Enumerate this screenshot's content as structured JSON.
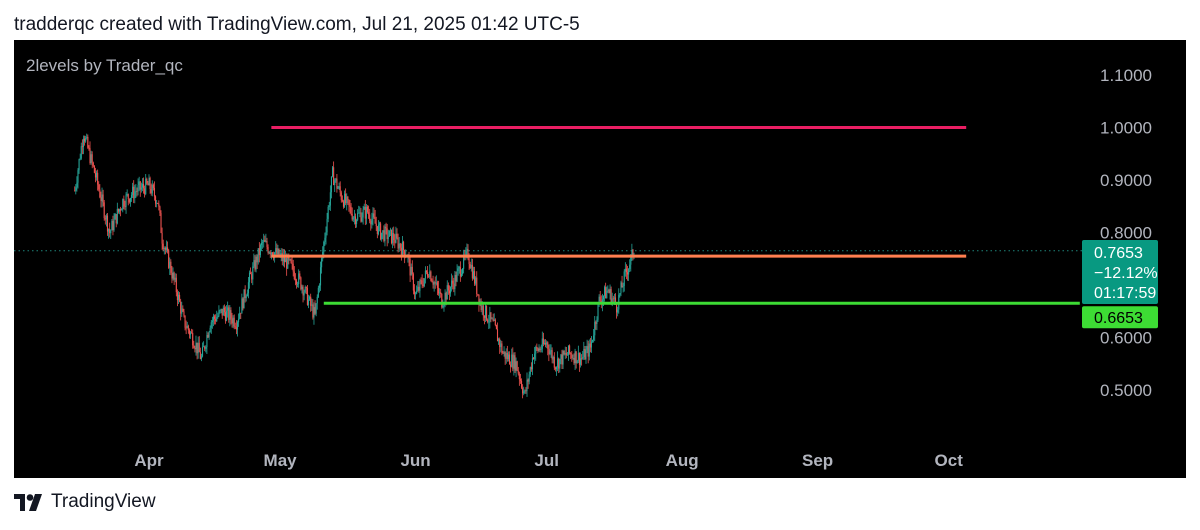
{
  "header": {
    "text": "tradderqc created with TradingView.com, Jul 21, 2025 01:42 UTC-5"
  },
  "study": {
    "label": "2levels by Trader_qc"
  },
  "footer": {
    "brand": "TradingView",
    "logo_icon": "tradingview-logo-icon"
  },
  "colors": {
    "up": "#26a69a",
    "down": "#ef5350",
    "resistance": "#e91e63",
    "pivot": "#ff7f50",
    "support": "#3ddc34",
    "last_price_bg": "#089981",
    "support_badge_bg": "#3ddc34"
  },
  "chart_data": {
    "type": "candlestick",
    "yscale": "linear",
    "ylim": [
      0.42,
      1.15
    ],
    "y_ticks": [
      "1.1000",
      "1.0000",
      "0.9000",
      "0.8000",
      "0.6000",
      "0.5000"
    ],
    "x_ticks": [
      "Apr",
      "May",
      "Jun",
      "Jul",
      "Aug",
      "Sep",
      "Oct"
    ],
    "grid": false,
    "price_path": [
      [
        "Mar 15",
        0.88
      ],
      [
        "Mar 17",
        0.99
      ],
      [
        "Mar 20",
        0.9
      ],
      [
        "Mar 23",
        0.8
      ],
      [
        "Mar 26",
        0.86
      ],
      [
        "Mar 29",
        0.88
      ],
      [
        "Apr 1",
        0.89
      ],
      [
        "Apr 3",
        0.86
      ],
      [
        "Apr 4",
        0.79
      ],
      [
        "Apr 7",
        0.7
      ],
      [
        "Apr 9",
        0.63
      ],
      [
        "Apr 11",
        0.6
      ],
      [
        "Apr 13",
        0.56
      ],
      [
        "Apr 15",
        0.63
      ],
      [
        "Apr 18",
        0.65
      ],
      [
        "Apr 21",
        0.63
      ],
      [
        "Apr 24",
        0.71
      ],
      [
        "Apr 27",
        0.78
      ],
      [
        "Apr 30",
        0.76
      ],
      [
        "May 3",
        0.74
      ],
      [
        "May 6",
        0.7
      ],
      [
        "May 9",
        0.64
      ],
      [
        "May 11",
        0.78
      ],
      [
        "May 13",
        0.91
      ],
      [
        "May 15",
        0.87
      ],
      [
        "May 18",
        0.83
      ],
      [
        "May 21",
        0.84
      ],
      [
        "May 24",
        0.8
      ],
      [
        "May 27",
        0.79
      ],
      [
        "May 30",
        0.76
      ],
      [
        "Jun 1",
        0.68
      ],
      [
        "Jun 4",
        0.73
      ],
      [
        "Jun 7",
        0.67
      ],
      [
        "Jun 10",
        0.71
      ],
      [
        "Jun 13",
        0.76
      ],
      [
        "Jun 16",
        0.66
      ],
      [
        "Jun 19",
        0.62
      ],
      [
        "Jun 21",
        0.57
      ],
      [
        "Jun 24",
        0.55
      ],
      [
        "Jun 26",
        0.49
      ],
      [
        "Jun 28",
        0.57
      ],
      [
        "Jul 1",
        0.59
      ],
      [
        "Jul 3",
        0.55
      ],
      [
        "Jul 6",
        0.57
      ],
      [
        "Jul 9",
        0.56
      ],
      [
        "Jul 11",
        0.58
      ],
      [
        "Jul 13",
        0.67
      ],
      [
        "Jul 15",
        0.69
      ],
      [
        "Jul 17",
        0.66
      ],
      [
        "Jul 19",
        0.72
      ],
      [
        "Jul 21",
        0.7653
      ]
    ],
    "levels": [
      {
        "price": 1.0,
        "from": "Apr 29",
        "to": "Oct 5",
        "color": "#e91e63"
      },
      {
        "price": 0.755,
        "from": "Apr 29",
        "to": "Oct 5",
        "color": "#ff7f50"
      },
      {
        "price": 0.6653,
        "from": "May 11",
        "to": "Oct 31",
        "color": "#3ddc34"
      }
    ],
    "last_price": {
      "value": "0.7653",
      "change": "−12.12%",
      "countdown": "01:17:59"
    },
    "support_badge": {
      "value": "0.6653"
    }
  }
}
